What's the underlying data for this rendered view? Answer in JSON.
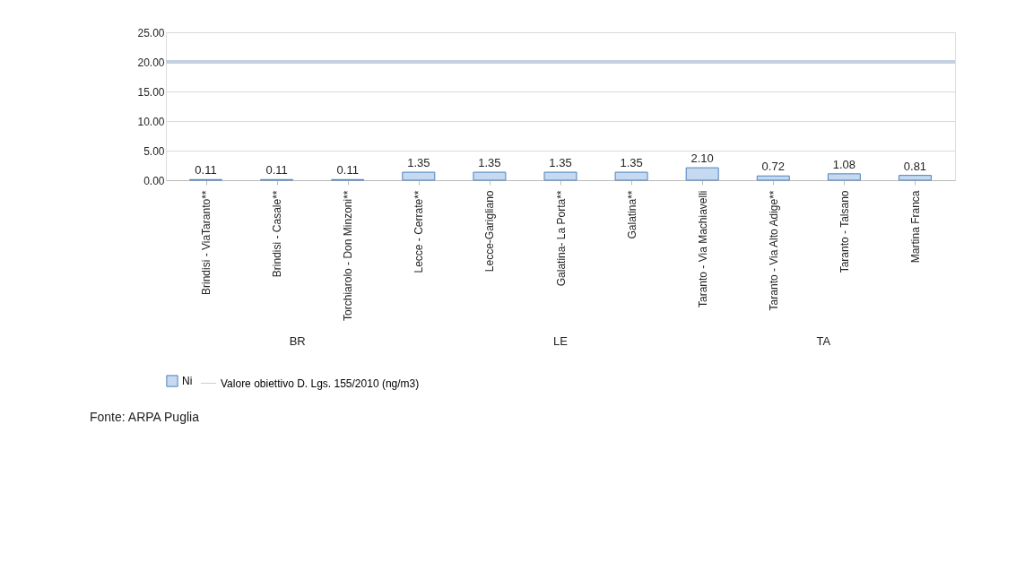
{
  "chart_data": {
    "type": "bar",
    "categories": [
      "Brindisi - ViaTaranto**",
      "Brindisi - Casale**",
      "Torchiarolo - Don Minzoni**",
      "Lecce - Cerrate**",
      "Lecce-Garigliano",
      "Galatina- La Porta**",
      "Galatina**",
      "Taranto - Via Machiavelli",
      "Taranto - Via Alto Adige**",
      "Taranto - Talsano",
      "Martina Franca"
    ],
    "series": [
      {
        "name": "Ni",
        "color": "#c5d9f1",
        "values": [
          0.11,
          0.11,
          0.11,
          1.35,
          1.35,
          1.35,
          1.35,
          2.1,
          0.72,
          1.08,
          0.81
        ],
        "value_labels": [
          "0.11",
          "0.11",
          "0.11",
          "1.35",
          "1.35",
          "1.35",
          "1.35",
          "2.10",
          "0.72",
          "1.08",
          "0.81"
        ]
      }
    ],
    "ylim": [
      0,
      25
    ],
    "yticks": [
      {
        "value": 0,
        "label": "0.00"
      },
      {
        "value": 5,
        "label": "5.00"
      },
      {
        "value": 10,
        "label": "10.00"
      },
      {
        "value": 15,
        "label": "15.00"
      },
      {
        "value": 20,
        "label": "20.00"
      },
      {
        "value": 25,
        "label": "25.00"
      }
    ],
    "ref_lines": [
      {
        "axis": "y",
        "value": 20,
        "label": "Valore obiettivo D. Lgs. 155/2010 (ng/m3)",
        "color": "#c3d0e0"
      }
    ],
    "annotations": [
      "BR",
      "LE",
      "TA",
      "Fonte: ARPA Puglia"
    ],
    "grid": "y",
    "legend": "bottom"
  }
}
